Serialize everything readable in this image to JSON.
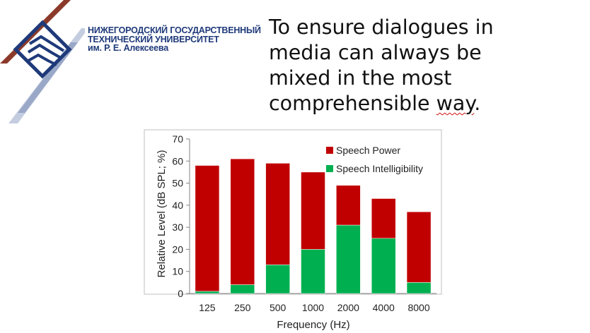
{
  "header": {
    "university_lines": [
      "НИЖЕГОРОДСКИЙ ГОСУДАРСТВЕННЫЙ",
      "ТЕХНИЧЕСКИЙ УНИВЕРСИТЕТ",
      "им. Р. Е. Алексеева"
    ],
    "headline_lines": [
      "To ensure dialogues in",
      "media can always be",
      "mixed in the most",
      "comprehensible "
    ],
    "headline_underlined_word": "way",
    "headline_end": "."
  },
  "colors": {
    "speech_power": "#c00000",
    "speech_intelligibility": "#00b050",
    "logo_brown": "#8b3a2a",
    "logo_blue": "#1f3a7a"
  },
  "chart_data": {
    "type": "bar",
    "stacked": true,
    "categories": [
      "125",
      "250",
      "500",
      "1000",
      "2000",
      "4000",
      "8000"
    ],
    "series": [
      {
        "name": "Speech Intelligibility",
        "values": [
          1,
          4,
          13,
          20,
          31,
          25,
          5
        ]
      },
      {
        "name": "Speech Power",
        "values": [
          57,
          57,
          46,
          35,
          18,
          18,
          32
        ]
      }
    ],
    "totals": [
      58,
      61,
      59,
      55,
      49,
      43,
      37
    ],
    "legend": [
      "Speech Power",
      "Speech Intelligibility"
    ],
    "legend_position": "top-right",
    "xlabel": "Frequency (Hz)",
    "ylabel": "Relative Level (dB SPL; %)",
    "ylim": [
      0,
      70
    ],
    "yticks": [
      0,
      10,
      20,
      30,
      40,
      50,
      60,
      70
    ],
    "grid": false
  }
}
